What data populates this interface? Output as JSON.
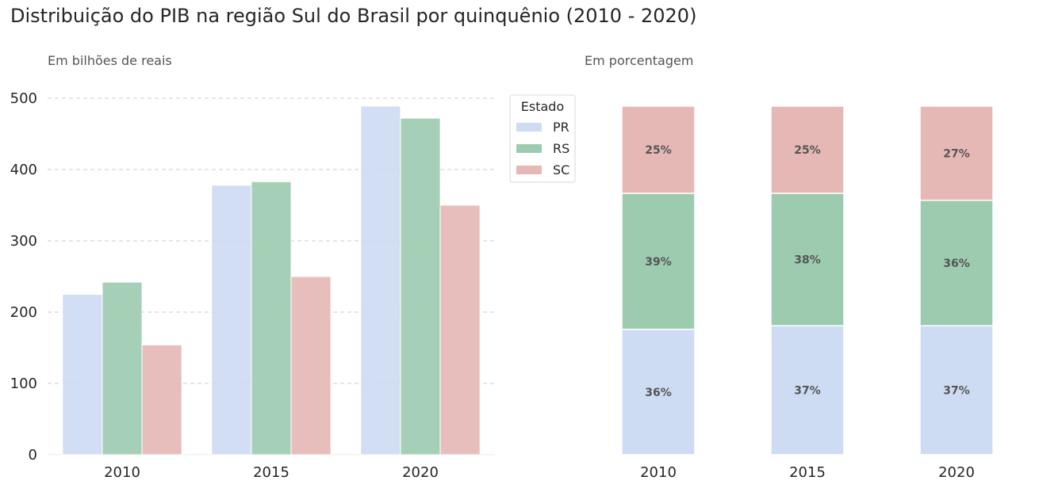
{
  "title": "Distribuição do PIB na região Sul do Brasil por quinquênio (2010 - 2020)",
  "colors": {
    "PR": "#cddbf3",
    "RS": "#9ccbb0",
    "SC": "#e6b8b5",
    "grid": "#cccccc",
    "label": "#555555"
  },
  "chart_data": [
    {
      "type": "bar",
      "subtitle": "Em bilhões de reais",
      "categories": [
        "2010",
        "2015",
        "2020"
      ],
      "ylim": [
        0,
        500
      ],
      "yticks": [
        0,
        100,
        200,
        300,
        400,
        500
      ],
      "grid": "y",
      "series": [
        {
          "name": "PR",
          "values": [
            225,
            378,
            489
          ]
        },
        {
          "name": "RS",
          "values": [
            242,
            383,
            472
          ]
        },
        {
          "name": "SC",
          "values": [
            154,
            250,
            350
          ]
        }
      ],
      "legend": {
        "title": "Estado",
        "placement": "top-right",
        "entries": [
          "PR",
          "RS",
          "SC"
        ]
      }
    },
    {
      "type": "bar",
      "stacked": true,
      "subtitle": "Em porcentagem",
      "categories": [
        "2010",
        "2015",
        "2020"
      ],
      "ylim": [
        0,
        100
      ],
      "series": [
        {
          "name": "PR",
          "values": [
            36,
            37,
            37
          ],
          "labels": [
            "36%",
            "37%",
            "37%"
          ]
        },
        {
          "name": "RS",
          "values": [
            39,
            38,
            36
          ],
          "labels": [
            "39%",
            "38%",
            "36%"
          ]
        },
        {
          "name": "SC",
          "values": [
            25,
            25,
            27
          ],
          "labels": [
            "25%",
            "25%",
            "27%"
          ]
        }
      ]
    }
  ]
}
